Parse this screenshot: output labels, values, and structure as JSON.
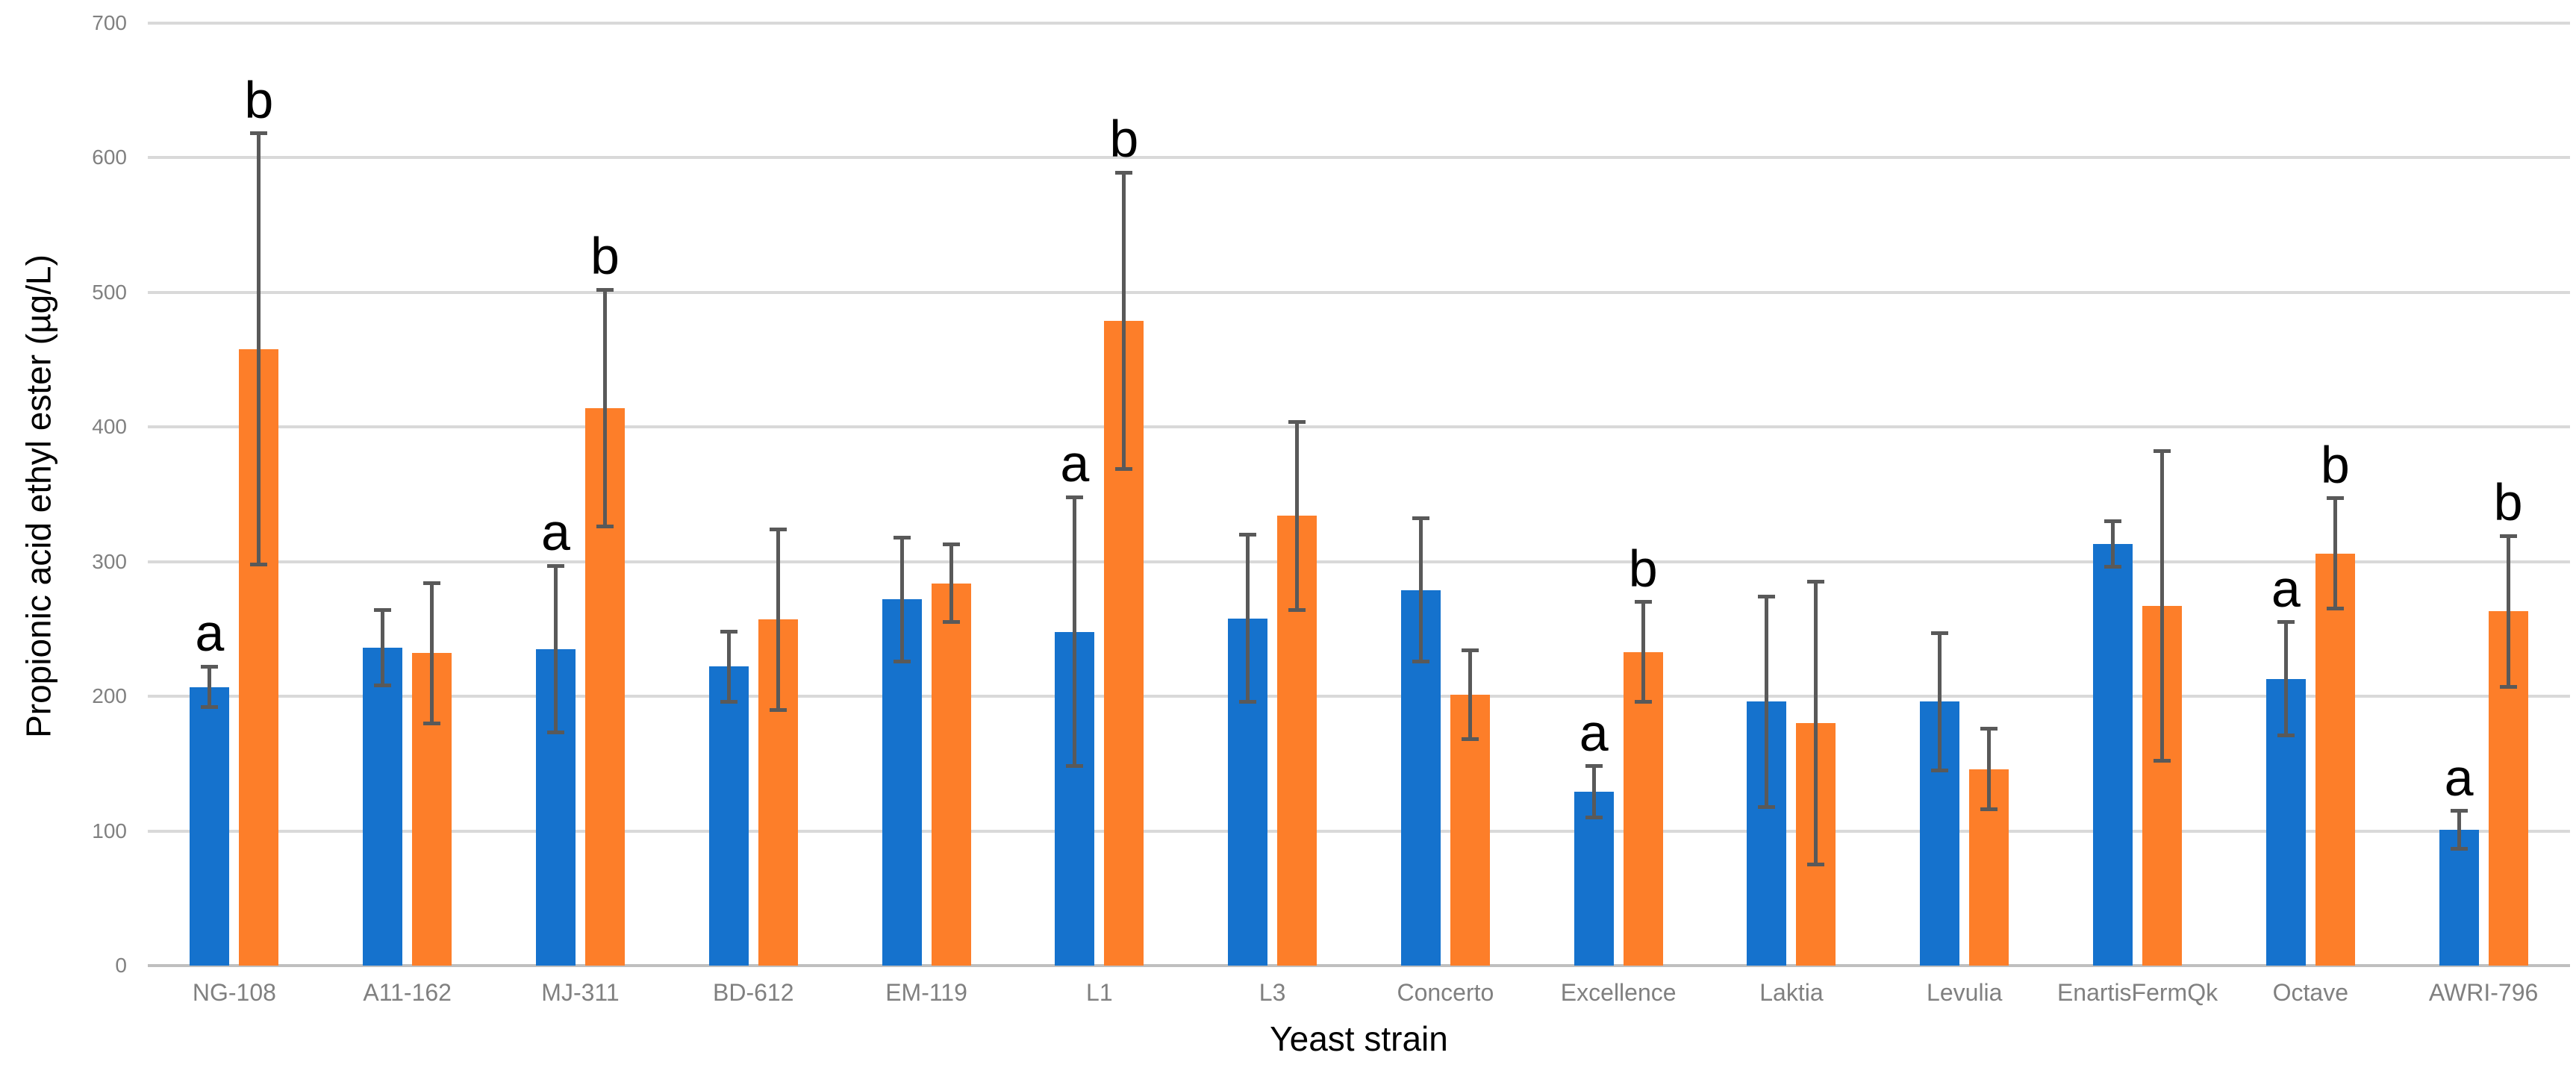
{
  "chart_data": {
    "type": "bar",
    "title": "",
    "xlabel": "Yeast strain",
    "ylabel": "Propionic acid ethyl ester (µg/L)",
    "ylim": [
      0,
      700
    ],
    "yticks": [
      0,
      100,
      200,
      300,
      400,
      500,
      600,
      700
    ],
    "grid": true,
    "legend": "none",
    "categories": [
      "NG-108",
      "A11-162",
      "MJ-311",
      "BD-612",
      "EM-119",
      "L1",
      "L3",
      "Concerto",
      "Excellence",
      "Laktia",
      "Levulia",
      "EnartisFermQk",
      "Octave",
      "AWRI-796"
    ],
    "series": [
      {
        "name": "blue",
        "color": "#1572CD",
        "values": [
          207,
          236,
          235,
          222,
          272,
          248,
          258,
          279,
          129,
          196,
          196,
          313,
          213,
          101
        ],
        "error_plus": [
          15,
          28,
          62,
          26,
          46,
          100,
          62,
          53,
          19,
          78,
          51,
          17,
          42,
          14
        ],
        "error_minus": [
          15,
          28,
          62,
          26,
          46,
          100,
          62,
          53,
          19,
          78,
          51,
          17,
          42,
          14
        ],
        "sig_letters": [
          "a",
          "",
          "a",
          "",
          "",
          "a",
          "",
          "",
          "a",
          "",
          "",
          "",
          "a",
          "a"
        ]
      },
      {
        "name": "orange",
        "color": "#FD7E29",
        "values": [
          458,
          232,
          414,
          257,
          284,
          479,
          334,
          201,
          233,
          180,
          146,
          267,
          306,
          263
        ],
        "error_plus": [
          160,
          52,
          88,
          67,
          29,
          110,
          70,
          33,
          37,
          105,
          30,
          115,
          41,
          56
        ],
        "error_minus": [
          160,
          52,
          88,
          67,
          29,
          110,
          70,
          33,
          37,
          105,
          30,
          115,
          41,
          56
        ],
        "sig_letters": [
          "b",
          "",
          "b",
          "",
          "",
          "b",
          "",
          "",
          "b",
          "",
          "",
          "",
          "b",
          "b"
        ]
      }
    ],
    "style": {
      "grid_color": "#D9D9D9",
      "axis_line_color": "#BFBFBF",
      "error_bar_color": "#595959",
      "tick_label_color": "#808080",
      "category_label_color": "#808080",
      "title_color": "#000000",
      "sig_letter_color": "#000000",
      "background": "#FFFFFF"
    }
  }
}
